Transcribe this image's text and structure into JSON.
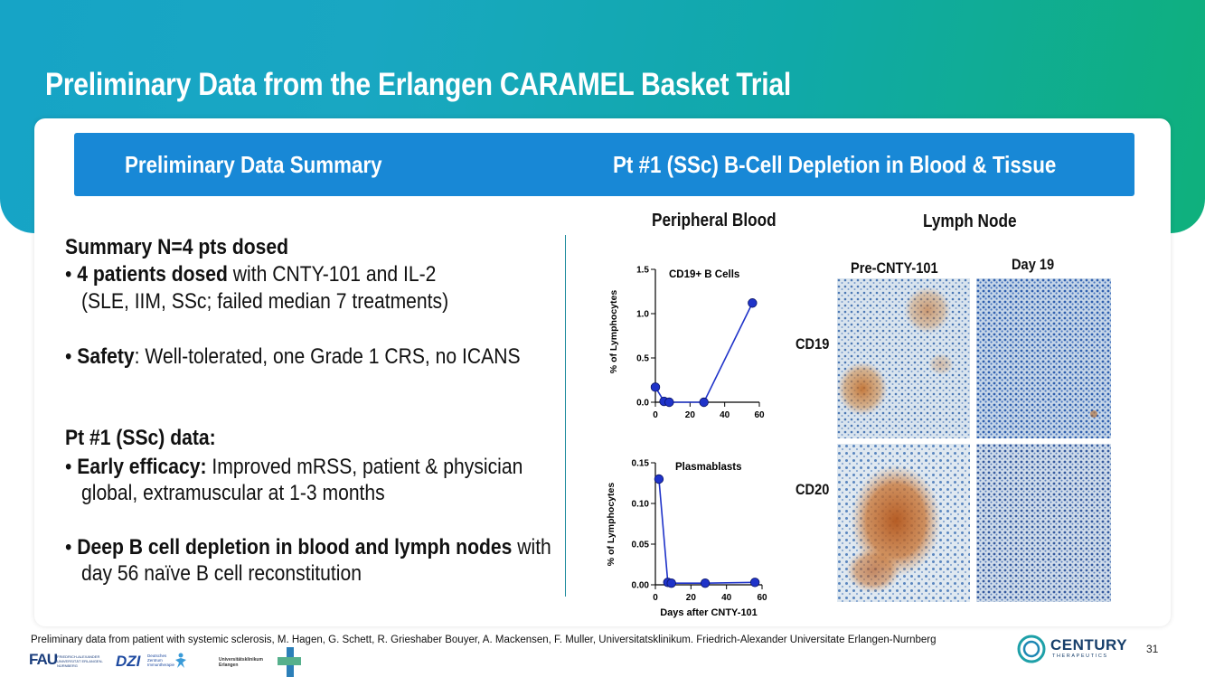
{
  "title": "Preliminary Data from the Erlangen CARAMEL Basket Trial",
  "header": {
    "left": "Preliminary Data Summary",
    "right": "Pt #1 (SSc)  B-Cell Depletion in Blood & Tissue"
  },
  "summary": {
    "heading": "Summary N=4 pts dosed",
    "bullet1_bold": "4 patients dosed",
    "bullet1_rest": " with CNTY-101 and IL-2",
    "bullet1_line2": "(SLE, IIM, SSc; failed median 7 treatments)",
    "bullet2_bold": "Safety",
    "bullet2_rest": ": Well-tolerated, one Grade 1 CRS, no ICANS",
    "pt_heading": "Pt #1 (SSc) data:",
    "bullet3_bold": "Early efficacy:",
    "bullet3_rest": " Improved mRSS, patient & physician",
    "bullet3_line2": "global, extramuscular at 1-3 months",
    "bullet4_bold": "Deep B cell depletion in blood and lymph nodes",
    "bullet4_rest": " with",
    "bullet4_line2": "day 56 naïve B cell reconstitution",
    "bullet_char": "•"
  },
  "panels": {
    "peripheral_blood": "Peripheral Blood",
    "lymph_node": "Lymph Node",
    "pre": "Pre-CNTY-101",
    "day19": "Day 19",
    "cd19": "CD19",
    "cd20": "CD20"
  },
  "chart_data": [
    {
      "type": "line",
      "title": "CD19+ B Cells",
      "xlabel": "",
      "ylabel": "% of Lymphocytes",
      "x": [
        0,
        5,
        8,
        28,
        56
      ],
      "y": [
        0.17,
        0.01,
        0.0,
        0.0,
        1.12
      ],
      "xlim": [
        0,
        60
      ],
      "ylim": [
        0,
        1.5
      ],
      "xticks": [
        "0",
        "20",
        "40",
        "60"
      ],
      "yticks": [
        "0.0",
        "0.5",
        "1.0",
        "1.5"
      ]
    },
    {
      "type": "line",
      "title": "Plasmablasts",
      "xlabel": "Days after CNTY-101",
      "ylabel": "% of Lymphocytes",
      "x": [
        2,
        7,
        9,
        28,
        56
      ],
      "y": [
        0.13,
        0.003,
        0.002,
        0.002,
        0.003
      ],
      "xlim": [
        0,
        60
      ],
      "ylim": [
        0,
        0.15
      ],
      "xticks": [
        "0",
        "20",
        "40",
        "60"
      ],
      "yticks": [
        "0.00",
        "0.05",
        "0.10",
        "0.15"
      ]
    }
  ],
  "footer": {
    "note": "Preliminary data from patient with systemic sclerosis, M. Hagen, G. Schett, R. Grieshaber Bouyer, A. Mackensen, F. Muller, Universitatsklinikum. Friedrich-Alexander Universitate Erlangen-Nurnberg",
    "page": "31",
    "logo_fau": "FAU",
    "logo_fau_sub": "FRIEDRICH-ALEXANDER UNIVERSITÄT ERLANGEN-NÜRNBERG",
    "logo_dzi": "DZI",
    "logo_dzi_sub": "Deutsches Zentrum Immuntherapie",
    "logo_uk": "Universitätsklinikum Erlangen",
    "century": "CENTURY",
    "century_sub": "THERAPEUTICS"
  },
  "colors": {
    "accent": "#1888d6",
    "marker": "#1f33c9",
    "teal": "#10a9a8"
  }
}
